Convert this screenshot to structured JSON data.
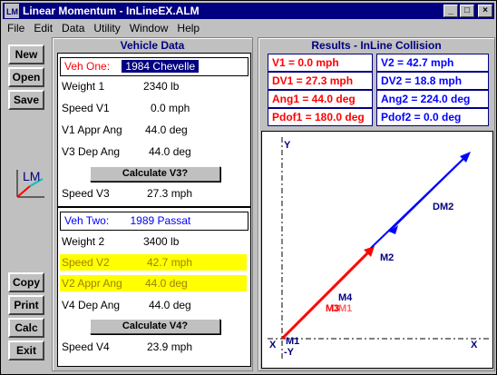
{
  "window": {
    "title": "Linear Momentum - InLineEX.ALM",
    "minimize": "_",
    "maximize": "□",
    "close": "×"
  },
  "menu": [
    "File",
    "Edit",
    "Data",
    "Utility",
    "Window",
    "Help"
  ],
  "toolbar": {
    "new": "New",
    "open": "Open",
    "save": "Save",
    "copy": "Copy",
    "print": "Print",
    "calc": "Calc",
    "exit": "Exit",
    "logo_text": "LM"
  },
  "vehicle_panel": {
    "title": "Vehicle Data",
    "veh1": {
      "label": "Veh One:",
      "name": "1984 Chevelle",
      "weight_label": "Weight 1",
      "weight": "2340 lb",
      "speed_label": "Speed V1",
      "speed": "0.0 mph",
      "appr_label": "V1 Appr Ang",
      "appr": "44.0 deg",
      "dep_label": "V3 Dep Ang",
      "dep": "44.0 deg",
      "calc_label": "Calculate V3?",
      "result_label": "Speed V3",
      "result": "27.3 mph"
    },
    "veh2": {
      "label": "Veh Two:",
      "name": "1989 Passat",
      "weight_label": "Weight 2",
      "weight": "3400 lb",
      "speed_label": "Speed V2",
      "speed": "42.7 mph",
      "appr_label": "V2 Appr Ang",
      "appr": "44.0 deg",
      "dep_label": "V4 Dep Ang",
      "dep": "44.0 deg",
      "calc_label": "Calculate V4?",
      "result_label": "Speed V4",
      "result": "23.9 mph"
    }
  },
  "results_panel": {
    "title": "Results - InLine Collision",
    "v1": "V1 = 0.0 mph",
    "v2": "V2 = 42.7 mph",
    "dv1": "DV1 = 27.3 mph",
    "dv2": "DV2 = 18.8 mph",
    "ang1": "Ang1 = 44.0 deg",
    "ang2": "Ang2 = 224.0 deg",
    "pdof1": "Pdof1 = 180.0 deg",
    "pdof2": "Pdof2 = 0.0 deg"
  },
  "plot": {
    "y_label": "Y",
    "neg_y_label": "-Y",
    "x_label": "X",
    "neg_x_label": "X",
    "labels": {
      "m1": "M1",
      "m2": "M2",
      "m4": "M4",
      "m3": "M3",
      "dm2": "DM2",
      "dm1": "DM1"
    },
    "colors": {
      "red": "#ff0000",
      "blue": "#0000ff",
      "navy": "#000080"
    }
  }
}
